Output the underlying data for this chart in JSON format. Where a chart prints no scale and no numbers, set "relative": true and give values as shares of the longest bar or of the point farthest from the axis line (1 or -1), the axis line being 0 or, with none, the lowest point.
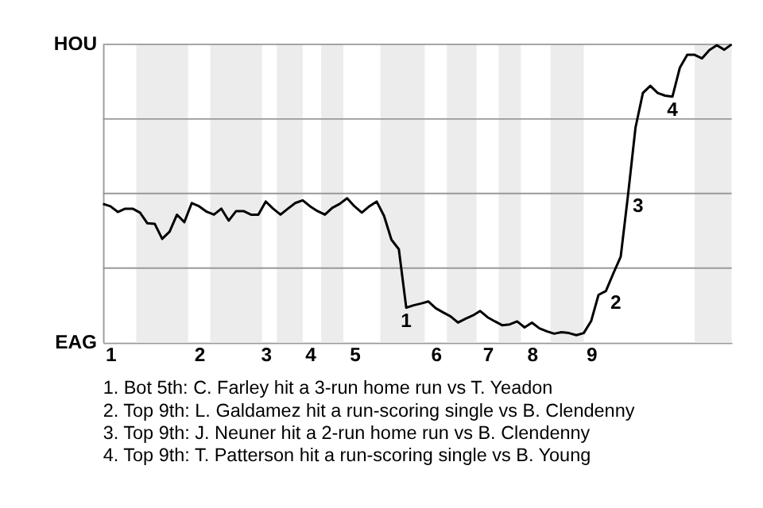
{
  "chart_data": {
    "type": "line",
    "relative": true,
    "categories": [
      null,
      "1",
      null,
      null,
      null,
      null,
      null,
      null,
      null,
      null,
      null,
      null,
      null,
      "2",
      null,
      null,
      null,
      null,
      null,
      null,
      null,
      null,
      "3",
      null,
      null,
      null,
      null,
      null,
      "4",
      null,
      null,
      null,
      null,
      null,
      "5",
      null,
      null,
      null,
      null,
      null,
      null,
      null,
      null,
      null,
      null,
      "6",
      null,
      null,
      null,
      null,
      null,
      null,
      "7",
      null,
      null,
      null,
      null,
      null,
      "8",
      null,
      null,
      null,
      null,
      null,
      null,
      null,
      "9",
      null,
      null,
      null,
      null,
      null,
      null,
      null,
      null,
      null,
      null,
      null,
      null,
      null,
      null,
      null,
      null,
      null,
      null,
      null
    ],
    "series": [
      {
        "color": "#000000",
        "values": [
          0.465,
          0.457,
          0.438,
          0.449,
          0.449,
          0.436,
          0.4,
          0.398,
          0.348,
          0.372,
          0.429,
          0.404,
          0.468,
          0.457,
          0.439,
          0.429,
          0.449,
          0.409,
          0.441,
          0.441,
          0.429,
          0.429,
          0.473,
          0.449,
          0.429,
          0.449,
          0.468,
          0.477,
          0.457,
          0.441,
          0.429,
          0.452,
          0.465,
          0.484,
          0.457,
          0.436,
          0.457,
          0.473,
          0.425,
          0.345,
          0.313,
          0.117,
          0.125,
          0.131,
          0.138,
          0.115,
          0.101,
          0.088,
          0.067,
          0.08,
          0.091,
          0.106,
          0.085,
          0.071,
          0.058,
          0.061,
          0.071,
          0.051,
          0.067,
          0.048,
          0.038,
          0.03,
          0.035,
          0.032,
          0.025,
          0.032,
          0.072,
          0.16,
          0.173,
          0.232,
          0.288,
          0.497,
          0.721,
          0.837,
          0.861,
          0.837,
          0.828,
          0.825,
          0.922,
          0.965,
          0.965,
          0.953,
          0.981,
          0.997,
          0.982,
          1.0
        ]
      }
    ],
    "line_style": "solid",
    "ref_lines": [
      {
        "axis": "y",
        "value": 0.25,
        "color": "#999999"
      },
      {
        "axis": "y",
        "value": 0.5,
        "color": "#999999"
      },
      {
        "axis": "y",
        "value": 0.75,
        "color": "#999999"
      },
      {
        "axis": "y",
        "value": 1,
        "color": "#999999"
      }
    ],
    "annotations": [
      "HOU",
      "EAG",
      {
        "text": "1",
        "y": 0.117
      },
      {
        "text": "2",
        "y": 0.173
      },
      {
        "text": "3",
        "y": 0.497
      },
      {
        "text": "4",
        "y": 0.825
      },
      "1. Bot 5th: C. Farley hit a 3-run home run vs T. Yeadon",
      "2. Top 9th: L. Galdamez hit a run-scoring single vs B. Clendenny",
      "3. Top 9th: J. Neuner hit a 2-run home run vs B. Clendenny",
      "4. Top 9th: T. Patterson hit a run-scoring single vs B. Young"
    ]
  }
}
